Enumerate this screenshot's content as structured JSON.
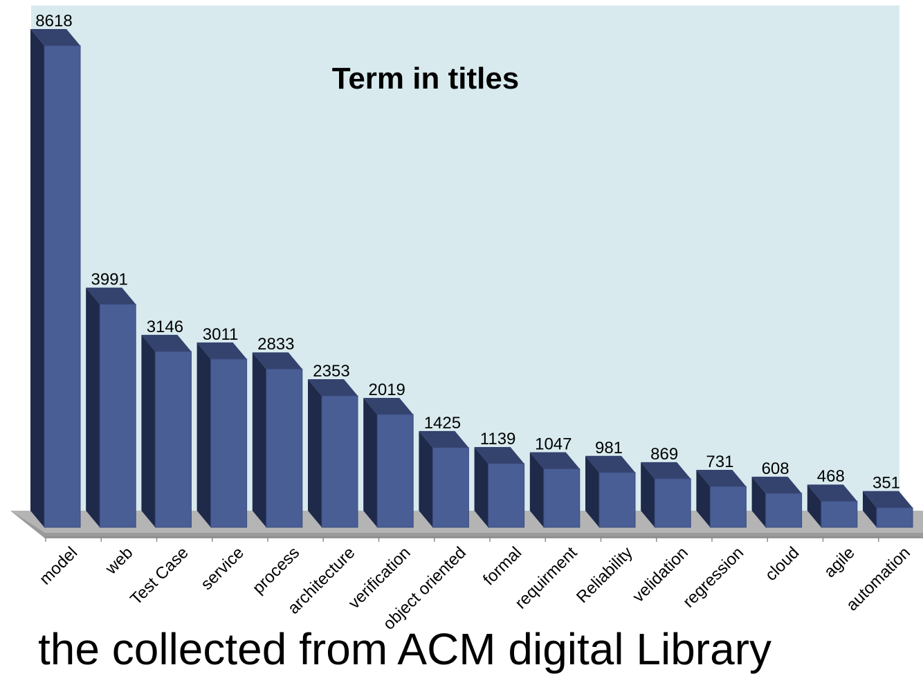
{
  "colors": {
    "plot_background": "#d8eaee",
    "bar_front": "#4a5e96",
    "bar_side": "#1f2a4a",
    "bar_top": "#34426e",
    "floor": "#b4b4b4"
  },
  "chart_data": {
    "type": "bar",
    "title": "Term in titles",
    "xlabel": "",
    "ylabel": "",
    "categories": [
      "model",
      "web",
      "Test Case",
      "service",
      "process",
      "architecture",
      "verification",
      "object oriented",
      "formal",
      "requirment",
      "Reliability",
      "velidation",
      "regression",
      "cloud",
      "agile",
      "automation"
    ],
    "values": [
      8618,
      3991,
      3146,
      3011,
      2833,
      2353,
      2019,
      1425,
      1139,
      1047,
      981,
      869,
      731,
      608,
      468,
      351
    ],
    "data_labels": [
      "8618",
      "3991",
      "3146",
      "3011",
      "2833",
      "2353",
      "2019",
      "1425",
      "1139",
      "1047",
      "981",
      "869",
      "731",
      "608",
      "468",
      "351"
    ],
    "ylim": [
      0,
      8618
    ],
    "grid": false,
    "legend": "none",
    "style": "3d-column"
  },
  "footer_text": "the collected from ACM digital Library"
}
